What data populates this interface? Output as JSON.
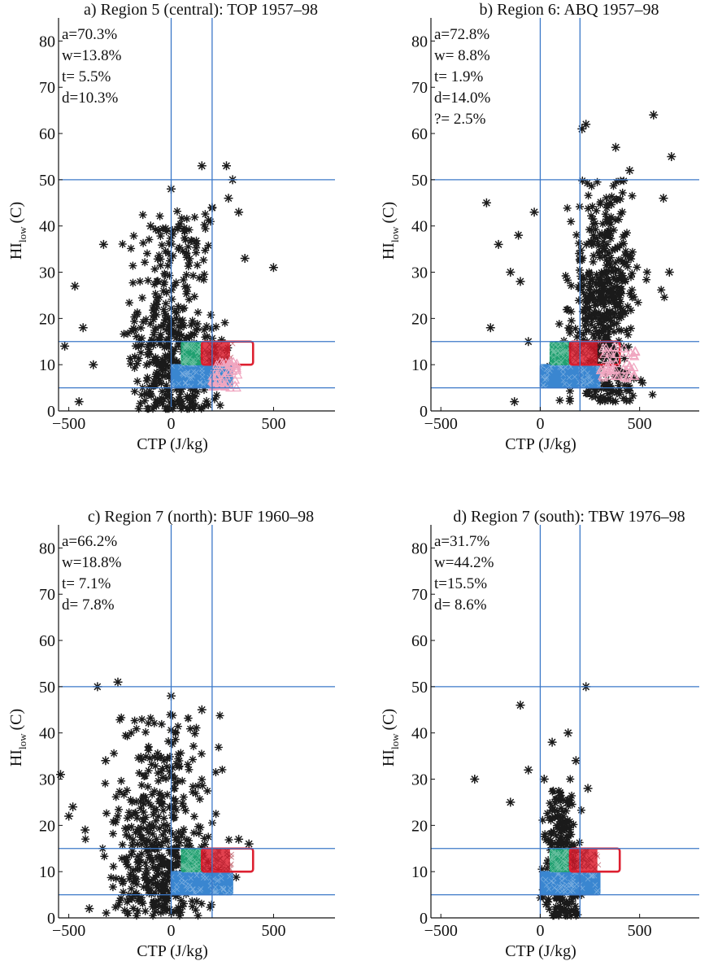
{
  "figure": {
    "stat_colors": {
      "a": "#1a1a1a",
      "w": "#3a86d0",
      "t": "#20a070",
      "d": "#dd2030",
      "q": "#f0a6c0"
    },
    "line_color": "#3b78c8"
  },
  "chart_data": [
    {
      "type": "scatter",
      "title": "a) Region 5 (central): TOP 1957–98",
      "xlabel": "CTP (J/kg)",
      "ylabel_main": "HI",
      "ylabel_sub": "low",
      "ylabel_unit": "(C)",
      "xlim": [
        -550,
        800
      ],
      "ylim": [
        0,
        85
      ],
      "xticks": [
        -500,
        0,
        500
      ],
      "yticks": [
        0,
        10,
        20,
        30,
        40,
        50,
        60,
        70,
        80
      ],
      "vlines": [
        0,
        200
      ],
      "hlines": [
        5,
        15,
        50
      ],
      "stats": [
        "a=70.3%",
        "w=13.8%",
        "t= 5.5%",
        "d=10.3%"
      ],
      "series": [
        {
          "key": "a",
          "x_center": 0,
          "x_spread": 185,
          "y_min": 0,
          "y_max": 44,
          "y_mode": 12,
          "count": 420
        },
        {
          "key": "w",
          "x_range": [
            0,
            300
          ],
          "y_range": [
            5,
            10
          ]
        },
        {
          "key": "t",
          "x_range": [
            50,
            150
          ],
          "y_range": [
            10,
            15
          ]
        },
        {
          "key": "d",
          "x_range": [
            150,
            400
          ],
          "y_range": [
            10,
            15
          ]
        },
        {
          "key": "q",
          "x_range": [
            200,
            330
          ],
          "y_range": [
            5,
            11
          ]
        }
      ],
      "outliers": [
        [
          -470,
          27
        ],
        [
          -520,
          14
        ],
        [
          -450,
          2
        ],
        [
          -330,
          36
        ],
        [
          -430,
          18
        ],
        [
          -380,
          10
        ],
        [
          150,
          53
        ],
        [
          270,
          53
        ],
        [
          300,
          50
        ],
        [
          500,
          31
        ],
        [
          -100,
          40
        ],
        [
          -60,
          39
        ],
        [
          200,
          44
        ],
        [
          330,
          43
        ],
        [
          280,
          46
        ],
        [
          360,
          33
        ],
        [
          0,
          48
        ]
      ]
    },
    {
      "type": "scatter",
      "title": "b) Region 6: ABQ 1957–98",
      "xlabel": "CTP (J/kg)",
      "ylabel_main": "HI",
      "ylabel_sub": "low",
      "ylabel_unit": "(C)",
      "xlim": [
        -550,
        800
      ],
      "ylim": [
        0,
        85
      ],
      "xticks": [
        -500,
        0,
        500
      ],
      "yticks": [
        0,
        10,
        20,
        30,
        40,
        50,
        60,
        70,
        80
      ],
      "vlines": [
        0,
        200
      ],
      "hlines": [
        5,
        15,
        50
      ],
      "stats": [
        "a=72.8%",
        "w= 8.8%",
        "t= 1.9%",
        "d=14.0%",
        "?= 2.5%"
      ],
      "series": [
        {
          "key": "a",
          "x_center": 320,
          "x_spread": 150,
          "y_min": 2,
          "y_max": 50,
          "y_mode": 25,
          "count": 480
        },
        {
          "key": "w",
          "x_range": [
            0,
            300
          ],
          "y_range": [
            5,
            10
          ]
        },
        {
          "key": "t",
          "x_range": [
            50,
            150
          ],
          "y_range": [
            10,
            15
          ]
        },
        {
          "key": "d",
          "x_range": [
            150,
            400
          ],
          "y_range": [
            10,
            15
          ]
        },
        {
          "key": "q",
          "x_range": [
            300,
            480
          ],
          "y_range": [
            7,
            14
          ]
        }
      ],
      "outliers": [
        [
          -270,
          45
        ],
        [
          -250,
          18
        ],
        [
          -210,
          36
        ],
        [
          -150,
          30
        ],
        [
          -110,
          38
        ],
        [
          -30,
          43
        ],
        [
          -100,
          28
        ],
        [
          -60,
          15
        ],
        [
          -130,
          2
        ],
        [
          210,
          61
        ],
        [
          230,
          62
        ],
        [
          570,
          64
        ],
        [
          660,
          55
        ],
        [
          620,
          46
        ],
        [
          650,
          30
        ],
        [
          380,
          57
        ],
        [
          450,
          52
        ]
      ]
    },
    {
      "type": "scatter",
      "title": "c) Region 7 (north): BUF 1960–98",
      "xlabel": "CTP (J/kg)",
      "ylabel_main": "HI",
      "ylabel_sub": "low",
      "ylabel_unit": "(C)",
      "xlim": [
        -550,
        800
      ],
      "ylim": [
        0,
        85
      ],
      "xticks": [
        -500,
        0,
        500
      ],
      "yticks": [
        0,
        10,
        20,
        30,
        40,
        50,
        60,
        70,
        80
      ],
      "vlines": [
        0,
        200
      ],
      "hlines": [
        5,
        15,
        50
      ],
      "stats": [
        "a=66.2%",
        "w=18.8%",
        "t= 7.1%",
        "d= 7.8%"
      ],
      "series": [
        {
          "key": "a",
          "x_center": -40,
          "x_spread": 210,
          "y_min": 1,
          "y_max": 44,
          "y_mode": 12,
          "count": 480
        },
        {
          "key": "w",
          "x_range": [
            0,
            300
          ],
          "y_range": [
            5,
            10
          ]
        },
        {
          "key": "t",
          "x_range": [
            50,
            150
          ],
          "y_range": [
            10,
            15
          ]
        },
        {
          "key": "d",
          "x_range": [
            150,
            400
          ],
          "y_range": [
            10,
            15
          ]
        }
      ],
      "outliers": [
        [
          -540,
          31
        ],
        [
          -500,
          22
        ],
        [
          -480,
          24
        ],
        [
          -360,
          50
        ],
        [
          -260,
          51
        ],
        [
          -320,
          34
        ],
        [
          -420,
          19
        ],
        [
          0,
          48
        ],
        [
          150,
          45
        ],
        [
          -400,
          2
        ],
        [
          330,
          17
        ],
        [
          380,
          16
        ]
      ]
    },
    {
      "type": "scatter",
      "title": "d) Region 7 (south): TBW 1976–98",
      "xlabel": "CTP (J/kg)",
      "ylabel_main": "HI",
      "ylabel_sub": "low",
      "ylabel_unit": "(C)",
      "xlim": [
        -550,
        800
      ],
      "ylim": [
        0,
        85
      ],
      "xticks": [
        -500,
        0,
        500
      ],
      "yticks": [
        0,
        10,
        20,
        30,
        40,
        50,
        60,
        70,
        80
      ],
      "vlines": [
        0,
        200
      ],
      "hlines": [
        5,
        15,
        50
      ],
      "stats": [
        "a=31.7%",
        "w=44.2%",
        "t=15.5%",
        "d= 8.6%"
      ],
      "series": [
        {
          "key": "a",
          "x_center": 110,
          "x_spread": 85,
          "y_min": 0,
          "y_max": 28,
          "y_mode": 12,
          "count": 240
        },
        {
          "key": "w",
          "x_range": [
            0,
            300
          ],
          "y_range": [
            5,
            10
          ]
        },
        {
          "key": "t",
          "x_range": [
            50,
            150
          ],
          "y_range": [
            10,
            15
          ]
        },
        {
          "key": "d",
          "x_range": [
            150,
            400
          ],
          "y_range": [
            10,
            15
          ]
        }
      ],
      "outliers": [
        [
          -330,
          30
        ],
        [
          -100,
          46
        ],
        [
          230,
          50
        ],
        [
          60,
          38
        ],
        [
          140,
          40
        ],
        [
          180,
          34
        ],
        [
          -150,
          25
        ],
        [
          -60,
          32
        ],
        [
          20,
          30
        ],
        [
          240,
          28
        ]
      ]
    }
  ]
}
